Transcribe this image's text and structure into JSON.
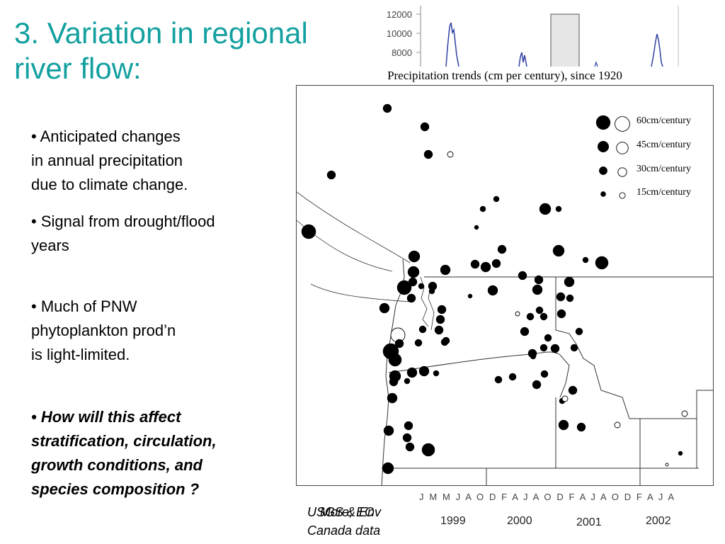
{
  "slide": {
    "title": "3. Variation in regional river flow:",
    "bullets": [
      "•  Anticipated changes\nin annual precipitation\ndue to climate change.",
      "• Signal from drought/flood\nyears",
      "• Much of PNW\nphytoplankton prod’n\nis light-limited.",
      "• How will this affect\nstratification, circulation,\ngrowth conditions, and\nspecies composition ?"
    ],
    "source_line1a": "USGS & Env",
    "source_line1b": "More, EC",
    "source_line2": "Canada data"
  },
  "hydrograph": {
    "y_ticks": [
      "12000",
      "10000",
      "8000"
    ],
    "month_letters": "J M M J A O D F A J A O D F A J A O D F A J A",
    "years": [
      "1999",
      "2000",
      "2001",
      "2002"
    ]
  },
  "precip_map": {
    "caption": "Precipitation trends (cm per century), since 1920",
    "legend": [
      {
        "label": "60cm/century",
        "value": 60
      },
      {
        "label": "45cm/century",
        "value": 45
      },
      {
        "label": "30cm/century",
        "value": 30
      },
      {
        "label": "15cm/century",
        "value": 15
      }
    ],
    "colors": {
      "increase": "#000000",
      "decrease": "#ffffff"
    }
  }
}
